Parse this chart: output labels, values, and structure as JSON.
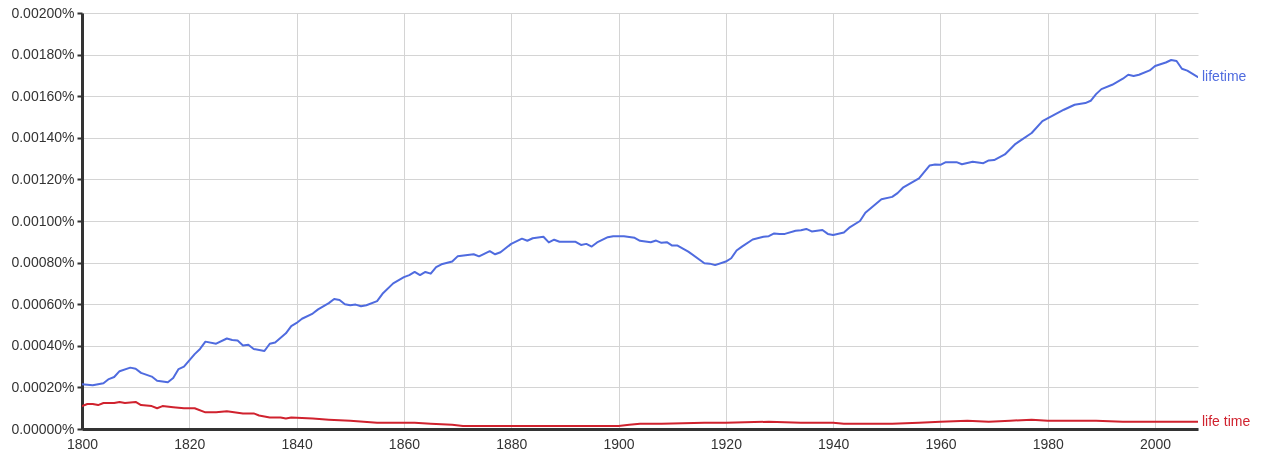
{
  "chart_data": {
    "type": "line",
    "xlim": [
      1800,
      2008
    ],
    "xticks": [
      1800,
      1820,
      1840,
      1860,
      1880,
      1900,
      1920,
      1940,
      1960,
      1980,
      2000
    ],
    "ylim": [
      0,
      0.002
    ],
    "yticks": [
      {
        "value": 0,
        "label": "0.00000%"
      },
      {
        "value": 0.0002,
        "label": "0.00020%"
      },
      {
        "value": 0.0004,
        "label": "0.00040%"
      },
      {
        "value": 0.0006,
        "label": "0.00060%"
      },
      {
        "value": 0.0008,
        "label": "0.00080%"
      },
      {
        "value": 0.001,
        "label": "0.00100%"
      },
      {
        "value": 0.0012,
        "label": "0.00120%"
      },
      {
        "value": 0.0014,
        "label": "0.00140%"
      },
      {
        "value": 0.0016,
        "label": "0.00160%"
      },
      {
        "value": 0.0018,
        "label": "0.00180%"
      },
      {
        "value": 0.002,
        "label": "0.00200%"
      }
    ],
    "grid": true,
    "series": [
      {
        "name": "lifetime",
        "color": "#4f6bdf",
        "x": [
          1800,
          1802,
          1804,
          1805,
          1806,
          1807,
          1809,
          1810,
          1811,
          1813,
          1814,
          1816,
          1817,
          1818,
          1819,
          1821,
          1822,
          1823,
          1825,
          1827,
          1828,
          1829,
          1830,
          1831,
          1832,
          1834,
          1835,
          1836,
          1838,
          1839,
          1840,
          1841,
          1843,
          1844,
          1846,
          1847,
          1848,
          1849,
          1850,
          1851,
          1852,
          1853,
          1855,
          1856,
          1858,
          1860,
          1861,
          1862,
          1863,
          1864,
          1865,
          1866,
          1867,
          1869,
          1870,
          1873,
          1874,
          1876,
          1877,
          1878,
          1880,
          1882,
          1883,
          1884,
          1886,
          1887,
          1888,
          1889,
          1892,
          1893,
          1894,
          1895,
          1896,
          1898,
          1899,
          1901,
          1903,
          1904,
          1906,
          1907,
          1908,
          1909,
          1910,
          1911,
          1913,
          1916,
          1917,
          1918,
          1920,
          1921,
          1922,
          1923,
          1925,
          1927,
          1928,
          1929,
          1930,
          1931,
          1933,
          1934,
          1935,
          1936,
          1938,
          1939,
          1940,
          1942,
          1943,
          1945,
          1946,
          1948,
          1949,
          1951,
          1952,
          1953,
          1956,
          1958,
          1959,
          1960,
          1961,
          1963,
          1964,
          1966,
          1968,
          1969,
          1970,
          1972,
          1974,
          1977,
          1979,
          1981,
          1983,
          1985,
          1987,
          1988,
          1989,
          1990,
          1992,
          1994,
          1995,
          1996,
          1997,
          1999,
          2000,
          2002,
          2003,
          2004,
          2005,
          2006,
          2008
        ],
        "values": [
          0.000215,
          0.00021,
          0.00022,
          0.00024,
          0.00025,
          0.000278,
          0.000295,
          0.00029,
          0.00027,
          0.000252,
          0.000232,
          0.000225,
          0.000245,
          0.000288,
          0.0003,
          0.00036,
          0.000385,
          0.00042,
          0.00041,
          0.000435,
          0.000428,
          0.000425,
          0.000402,
          0.000405,
          0.000385,
          0.000375,
          0.00041,
          0.000416,
          0.00046,
          0.000495,
          0.00051,
          0.00053,
          0.000555,
          0.000575,
          0.000605,
          0.000625,
          0.00062,
          0.0006,
          0.000595,
          0.000598,
          0.00059,
          0.000595,
          0.000615,
          0.00065,
          0.0007,
          0.00073,
          0.00074,
          0.000755,
          0.00074,
          0.000755,
          0.000747,
          0.000778,
          0.000792,
          0.000805,
          0.00083,
          0.00084,
          0.00083,
          0.000855,
          0.00084,
          0.00085,
          0.00089,
          0.000915,
          0.000905,
          0.000917,
          0.000924,
          0.000897,
          0.00091,
          0.0009,
          0.0009,
          0.000885,
          0.00089,
          0.000877,
          0.000897,
          0.000922,
          0.000927,
          0.000927,
          0.000919,
          0.000905,
          0.000898,
          0.000906,
          0.000895,
          0.000898,
          0.000882,
          0.000882,
          0.000853,
          0.000797,
          0.000795,
          0.000788,
          0.000805,
          0.000821,
          0.000858,
          0.000877,
          0.000911,
          0.000924,
          0.000927,
          0.00094,
          0.000937,
          0.000938,
          0.000953,
          0.000956,
          0.000962,
          0.00095,
          0.000957,
          0.000938,
          0.000933,
          0.000945,
          0.000968,
          0.001,
          0.00104,
          0.001083,
          0.001105,
          0.001116,
          0.001134,
          0.00116,
          0.001205,
          0.001267,
          0.001272,
          0.00127,
          0.001283,
          0.001283,
          0.001273,
          0.001285,
          0.001278,
          0.001291,
          0.001293,
          0.00132,
          0.001371,
          0.001423,
          0.00148,
          0.001508,
          0.001535,
          0.001559,
          0.001567,
          0.001578,
          0.00161,
          0.001634,
          0.001655,
          0.001684,
          0.001703,
          0.001697,
          0.001703,
          0.001724,
          0.001745,
          0.001762,
          0.001774,
          0.001769,
          0.001732,
          0.001723,
          0.001692
        ]
      },
      {
        "name": "life time",
        "color": "#d0222e",
        "x": [
          1800,
          1801,
          1802,
          1803,
          1804,
          1806,
          1807,
          1808,
          1810,
          1811,
          1813,
          1814,
          1815,
          1817,
          1819,
          1820,
          1821,
          1823,
          1825,
          1827,
          1830,
          1832,
          1833,
          1835,
          1837,
          1838,
          1839,
          1843,
          1846,
          1850,
          1855,
          1858,
          1862,
          1865,
          1869,
          1871,
          1875,
          1882,
          1886,
          1893,
          1899,
          1900,
          1902,
          1904,
          1908,
          1916,
          1920,
          1928,
          1934,
          1940,
          1942,
          1947,
          1951,
          1956,
          1960,
          1965,
          1969,
          1973,
          1977,
          1980,
          1983,
          1989,
          1994,
          2000,
          2008
        ],
        "values": [
          0.00011,
          0.00012,
          0.00012,
          0.000115,
          0.000125,
          0.000125,
          0.00013,
          0.000125,
          0.00013,
          0.000115,
          0.00011,
          0.0001,
          0.00011,
          0.000105,
          0.0001,
          0.0001,
          0.0001,
          8e-05,
          8e-05,
          8.5e-05,
          7.5e-05,
          7.5e-05,
          6.5e-05,
          5.5e-05,
          5.5e-05,
          5e-05,
          5.5e-05,
          5e-05,
          4.5e-05,
          4e-05,
          3e-05,
          3e-05,
          3e-05,
          2.5e-05,
          2e-05,
          1.5e-05,
          1.5e-05,
          1.5e-05,
          1.5e-05,
          1.5e-05,
          1.5e-05,
          1.5e-05,
          2e-05,
          2.5e-05,
          2.5e-05,
          3e-05,
          3e-05,
          3.5e-05,
          3e-05,
          3e-05,
          2.5e-05,
          2.5e-05,
          2.5e-05,
          3e-05,
          3.5e-05,
          4e-05,
          3.5e-05,
          4e-05,
          4.5e-05,
          4e-05,
          4e-05,
          4e-05,
          3.5e-05,
          3.5e-05,
          3.5e-05
        ]
      }
    ]
  }
}
